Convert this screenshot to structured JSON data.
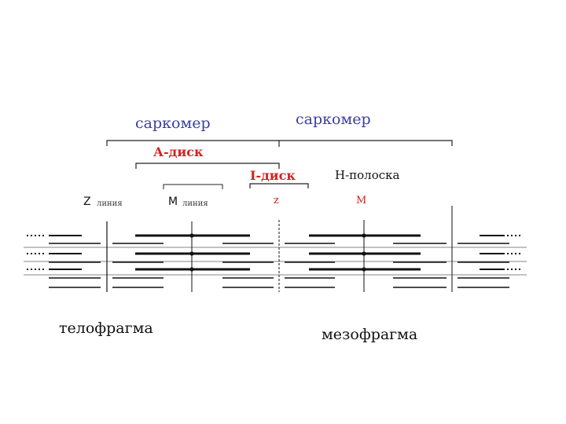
{
  "labels": {
    "sarcomere_left": "саркомер",
    "sarcomere_right": "саркомер",
    "a_disc": "А-диск",
    "i_disc": "I-диск",
    "h_band": "Н-полоска",
    "z_letter": "Z",
    "z_line_word": "линия",
    "m_letter": "M",
    "m_line_word": "линия",
    "z_small": "z",
    "m_small": "M",
    "telophragm": "телофрагма",
    "mesophragm": "мезофрагма"
  },
  "colors": {
    "blue_text": "#3a3fa0",
    "red_text": "#d42020",
    "lines": "#111111"
  }
}
